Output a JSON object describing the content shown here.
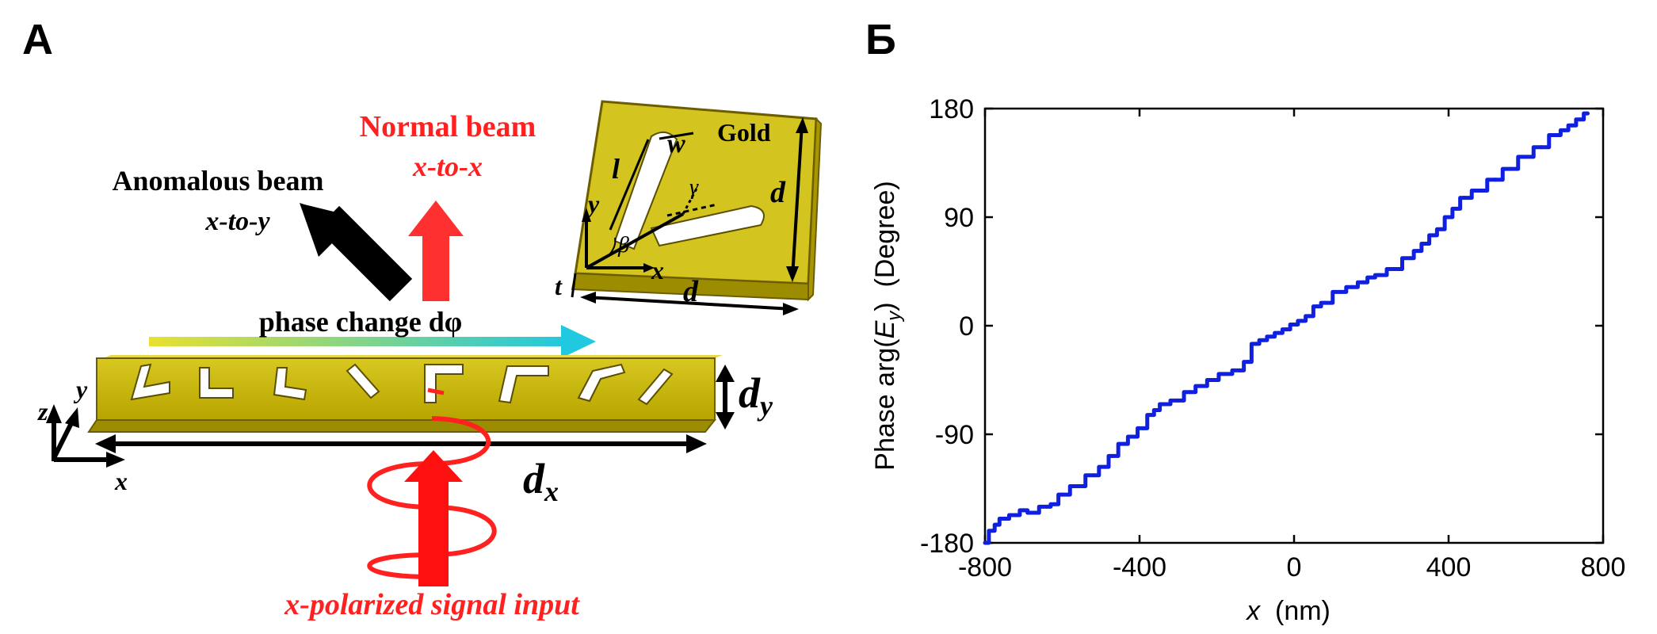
{
  "panel_a": {
    "label": "А",
    "normal_beam_title": "Normal beam",
    "normal_beam_mode": "x-to-x",
    "anomalous_beam_title": "Anomalous beam",
    "anomalous_beam_mode": "x-to-y",
    "phase_change": "phase change dφ",
    "input_label": "x-polarized signal input",
    "gold_label": "Gold",
    "symbols": {
      "w": "w",
      "l": "l",
      "d_side": "d",
      "d_bottom": "d",
      "t": "t",
      "beta": "β",
      "gamma": "γ",
      "x": "x",
      "y": "y",
      "z": "z",
      "dx": "d",
      "dx_sub": "x",
      "dy": "d",
      "dy_sub": "y"
    },
    "colors": {
      "gold": "#c8b400",
      "gold_dark": "#8c7c00",
      "gold_light": "#e6d84a",
      "red": "#ff2020",
      "arrow_black": "#000000",
      "gradient_start": "#e8e030",
      "gradient_end": "#20c8e0"
    }
  },
  "panel_b": {
    "label": "Б",
    "color": "#1020e0"
  },
  "chart_data": {
    "type": "line",
    "title": "",
    "xlabel": "x  (nm)",
    "ylabel": "Phase arg(E_y) (Degree)",
    "ylabel_parts": {
      "before": "Phase arg(",
      "var": "E",
      "sub": "y",
      "after": ")  (Degree)"
    },
    "xlabel_parts": {
      "var": "x",
      "after": "  (nm)"
    },
    "xlim": [
      -800,
      800
    ],
    "ylim": [
      -180,
      180
    ],
    "x_ticks": [
      "-800",
      "-400",
      "0",
      "400",
      "800"
    ],
    "y_ticks": [
      "180",
      "90",
      "0",
      "-90",
      "-180"
    ],
    "grid": false,
    "series": [
      {
        "x": [
          -800,
          -780,
          -770,
          -755,
          -720,
          -700,
          -680,
          -640,
          -620,
          -600,
          -560,
          -520,
          -490,
          -470,
          -440,
          -420,
          -390,
          -370,
          -355,
          -340,
          -300,
          -270,
          -240,
          -210,
          -180,
          -140,
          -120,
          -100,
          -80,
          -60,
          -40,
          -20,
          0,
          20,
          40,
          60,
          80,
          120,
          150,
          180,
          200,
          220,
          260,
          300,
          320,
          340,
          360,
          380,
          400,
          420,
          440,
          480,
          520,
          560,
          600,
          640,
          680,
          700,
          720,
          740,
          760
        ],
        "y": [
          -180,
          -170,
          -165,
          -160,
          -157,
          -153,
          -155,
          -150,
          -148,
          -140,
          -133,
          -124,
          -117,
          -108,
          -98,
          -92,
          -85,
          -74,
          -70,
          -65,
          -62,
          -55,
          -50,
          -45,
          -40,
          -37,
          -30,
          -15,
          -12,
          -9,
          -6,
          -3,
          1,
          4,
          8,
          16,
          19,
          28,
          32,
          36,
          40,
          42,
          47,
          56,
          62,
          68,
          75,
          80,
          90,
          97,
          106,
          112,
          121,
          130,
          140,
          148,
          158,
          162,
          166,
          171,
          176
        ]
      }
    ]
  }
}
